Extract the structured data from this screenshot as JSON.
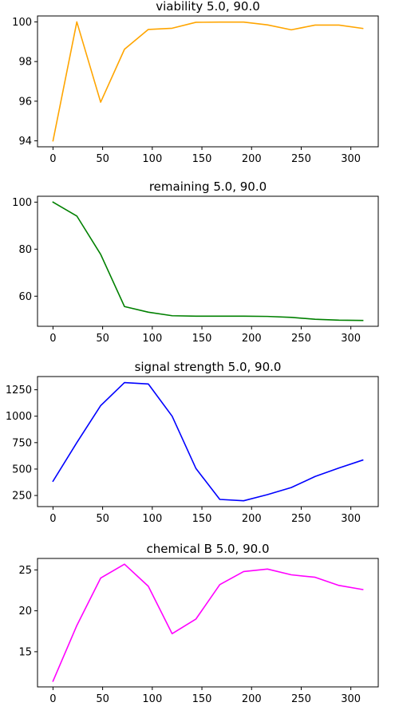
{
  "chart_data": [
    {
      "type": "line",
      "title": "viability 5.0, 90.0",
      "xlabel": "",
      "ylabel": "",
      "color": "#ffa500",
      "x": [
        0,
        24,
        48,
        72,
        96,
        120,
        144,
        168,
        192,
        216,
        240,
        264,
        288,
        312
      ],
      "y": [
        94.0,
        100.0,
        95.95,
        98.62,
        99.62,
        99.68,
        99.98,
        99.99,
        99.99,
        99.85,
        99.6,
        99.84,
        99.84,
        99.67
      ],
      "xlim": [
        -15.6,
        327.6
      ],
      "ylim": [
        93.7,
        100.3
      ],
      "xticks": [
        0,
        50,
        100,
        150,
        200,
        250,
        300
      ],
      "yticks": [
        94,
        96,
        98,
        100
      ],
      "grid": false,
      "legend": "none"
    },
    {
      "type": "line",
      "title": "remaining 5.0, 90.0",
      "xlabel": "",
      "ylabel": "",
      "color": "#008000",
      "x": [
        0,
        24,
        48,
        72,
        96,
        120,
        144,
        168,
        192,
        216,
        240,
        264,
        288,
        312
      ],
      "y": [
        100.0,
        94.1,
        77.8,
        55.6,
        53.2,
        51.7,
        51.5,
        51.5,
        51.5,
        51.4,
        51.0,
        50.2,
        49.8,
        49.7
      ],
      "xlim": [
        -15.6,
        327.6
      ],
      "ylim": [
        47.2,
        102.5
      ],
      "xticks": [
        0,
        50,
        100,
        150,
        200,
        250,
        300
      ],
      "yticks": [
        60,
        80,
        100
      ],
      "grid": false,
      "legend": "none"
    },
    {
      "type": "line",
      "title": "signal strength 5.0, 90.0",
      "xlabel": "",
      "ylabel": "",
      "color": "#0000ff",
      "x": [
        0,
        24,
        48,
        72,
        96,
        120,
        144,
        168,
        192,
        216,
        240,
        264,
        288,
        312
      ],
      "y": [
        385,
        750,
        1100,
        1318,
        1305,
        1000,
        505,
        213,
        200,
        258,
        325,
        430,
        510,
        585
      ],
      "xlim": [
        -15.6,
        327.6
      ],
      "ylim": [
        145,
        1375
      ],
      "xticks": [
        0,
        50,
        100,
        150,
        200,
        250,
        300
      ],
      "yticks": [
        250,
        500,
        750,
        1000,
        1250
      ],
      "grid": false,
      "legend": "none"
    },
    {
      "type": "line",
      "title": "chemical B 5.0, 90.0",
      "xlabel": "",
      "ylabel": "",
      "color": "#ff00ff",
      "x": [
        0,
        24,
        48,
        72,
        96,
        120,
        144,
        168,
        192,
        216,
        240,
        264,
        288,
        312
      ],
      "y": [
        11.4,
        18.2,
        24.0,
        25.7,
        23.0,
        17.2,
        19.0,
        23.2,
        24.8,
        25.1,
        24.4,
        24.1,
        23.1,
        22.6
      ],
      "xlim": [
        -15.6,
        327.6
      ],
      "ylim": [
        10.7,
        26.4
      ],
      "xticks": [
        0,
        50,
        100,
        150,
        200,
        250,
        300
      ],
      "yticks": [
        15,
        20,
        25
      ],
      "grid": false,
      "legend": "none"
    }
  ]
}
